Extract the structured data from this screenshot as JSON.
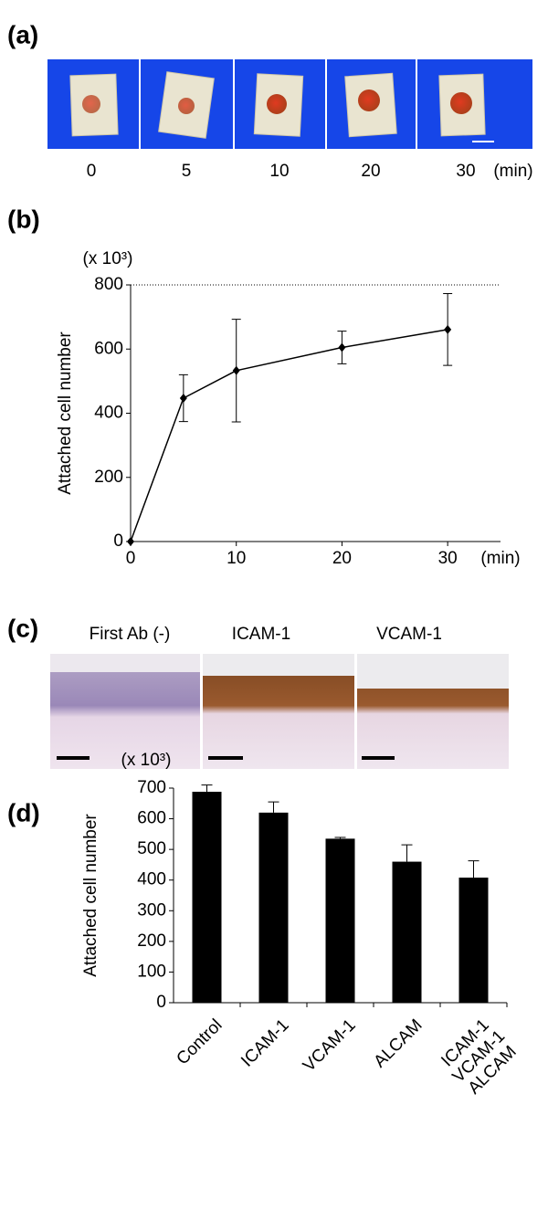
{
  "panel_a": {
    "label": "(a)",
    "captions": [
      "0",
      "5",
      "10",
      "20",
      "30"
    ],
    "unit": "(min)"
  },
  "panel_c": {
    "label": "(c)",
    "captions": [
      "First Ab (-)",
      "ICAM-1",
      "VCAM-1"
    ]
  },
  "chart_data": [
    {
      "type": "line",
      "panel_label": "(b)",
      "y_label": "Attached cell number",
      "y_unit": "(x 10³)",
      "x_unit": "(min)",
      "x": [
        0,
        5,
        10,
        20,
        30
      ],
      "series": [
        {
          "name": "Attached cell number",
          "color": "#000000",
          "values": [
            0,
            447,
            533,
            605,
            661
          ],
          "errors": [
            0,
            73,
            160,
            51,
            112
          ]
        }
      ],
      "xlim": [
        0,
        35
      ],
      "xticks": [
        0,
        10,
        20,
        30
      ],
      "ylim": [
        0,
        800
      ],
      "yticks": [
        0,
        200,
        400,
        600,
        800
      ]
    },
    {
      "type": "bar",
      "panel_label": "(d)",
      "y_label": "Attached cell number",
      "y_unit": "(x 10³)",
      "categories": [
        "Control",
        "ICAM-1",
        "VCAM-1",
        "ALCAM",
        "ICAM-1\nVCAM-1\nALCAM"
      ],
      "series": [
        {
          "name": "Attached cell number",
          "color": "#000000",
          "values": [
            688,
            620,
            535,
            460,
            408
          ],
          "errors": [
            22,
            35,
            4,
            55,
            55
          ]
        }
      ],
      "ylim": [
        0,
        700
      ],
      "yticks": [
        0,
        100,
        200,
        300,
        400,
        500,
        600,
        700
      ]
    }
  ]
}
